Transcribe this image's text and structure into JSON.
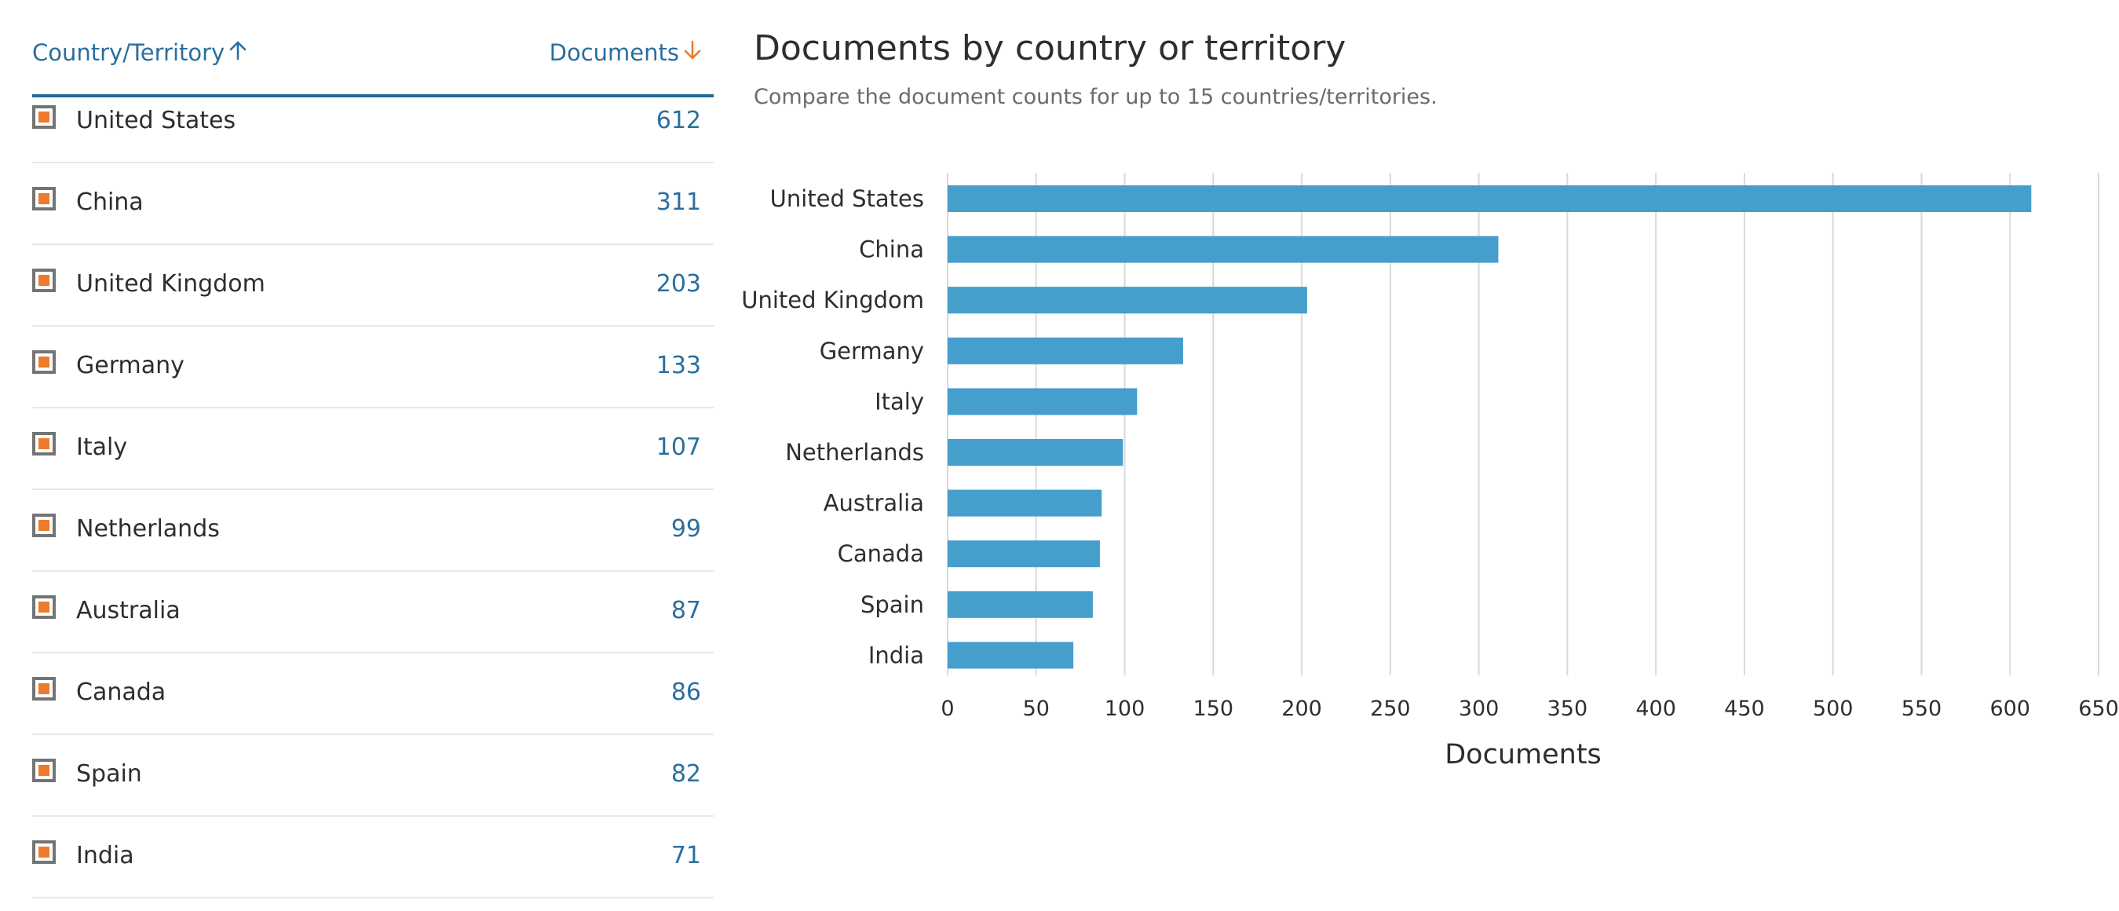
{
  "table": {
    "col_country": "Country/Territory",
    "col_documents": "Documents",
    "rows": [
      {
        "name": "United States",
        "count": "612"
      },
      {
        "name": "China",
        "count": "311"
      },
      {
        "name": "United Kingdom",
        "count": "203"
      },
      {
        "name": "Germany",
        "count": "133"
      },
      {
        "name": "Italy",
        "count": "107"
      },
      {
        "name": "Netherlands",
        "count": "99"
      },
      {
        "name": "Australia",
        "count": "87"
      },
      {
        "name": "Canada",
        "count": "86"
      },
      {
        "name": "Spain",
        "count": "82"
      },
      {
        "name": "India",
        "count": "71"
      }
    ]
  },
  "colors": {
    "accent_link": "#2a6f9e",
    "header_rule": "#1f6c92",
    "checkbox_fill": "#ee7a2d",
    "bar": "#459ecb",
    "grid": "#d9d9d9"
  },
  "chart_data": {
    "type": "bar",
    "orientation": "horizontal",
    "title": "Documents by country or territory",
    "subtitle": "Compare the document counts for up to 15 countries/territories.",
    "categories": [
      "United States",
      "China",
      "United Kingdom",
      "Germany",
      "Italy",
      "Netherlands",
      "Australia",
      "Canada",
      "Spain",
      "India"
    ],
    "values": [
      612,
      311,
      203,
      133,
      107,
      99,
      87,
      86,
      82,
      71
    ],
    "xlabel": "Documents",
    "ylabel": "",
    "xlim": [
      0,
      650
    ],
    "xticks": [
      0,
      50,
      100,
      150,
      200,
      250,
      300,
      350,
      400,
      450,
      500,
      550,
      600,
      650
    ],
    "grid": true,
    "legend": "none"
  }
}
